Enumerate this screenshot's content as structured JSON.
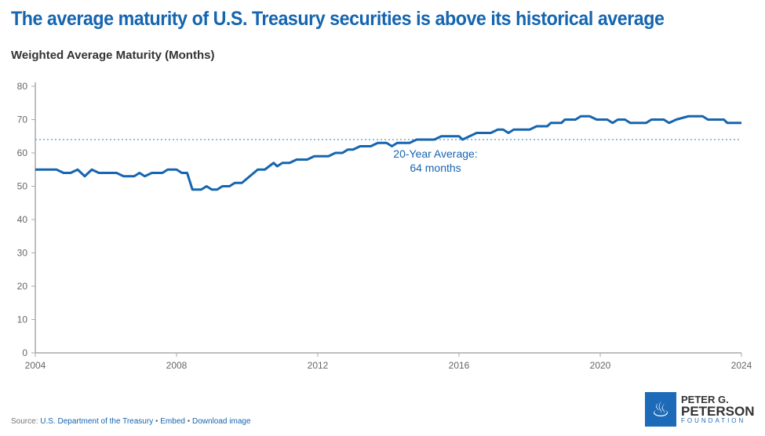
{
  "chart_data": {
    "type": "line",
    "title": "The average maturity of U.S. Treasury securities is above its historical average",
    "ylabel": "Weighted Average Maturity (Months)",
    "xlim": [
      2004,
      2024
    ],
    "ylim": [
      0,
      80
    ],
    "xticks": [
      "2004",
      "2008",
      "2012",
      "2016",
      "2020",
      "2024"
    ],
    "yticks": [
      "0",
      "10",
      "20",
      "30",
      "40",
      "50",
      "60",
      "70",
      "80"
    ],
    "grid": false,
    "line_color": "#1565b0",
    "reference_line": {
      "value": 64,
      "label_line1": "20-Year Average:",
      "label_line2": "64 months",
      "color": "#6fa8dc"
    },
    "points": [
      [
        2004.0,
        55
      ],
      [
        2004.6,
        55
      ],
      [
        2004.8,
        54
      ],
      [
        2005.2,
        54
      ],
      [
        2005.35,
        55
      ],
      [
        2005.6,
        53
      ],
      [
        2005.85,
        55
      ],
      [
        2006.1,
        54
      ],
      [
        2006.6,
        54
      ],
      [
        2006.8,
        53
      ],
      [
        2007.1,
        53
      ],
      [
        2007.25,
        54
      ],
      [
        2007.45,
        53
      ],
      [
        2007.7,
        54
      ],
      [
        2008.0,
        54
      ],
      [
        2008.2,
        55
      ],
      [
        2008.5,
        55
      ],
      [
        2008.7,
        54
      ],
      [
        2008.95,
        55
      ],
      [
        2009.15,
        54
      ],
      [
        2009.45,
        56
      ],
      [
        2010.2,
        56
      ],
      [
        2010.4,
        55
      ],
      [
        2010.6,
        55
      ],
      [
        2010.8,
        56
      ],
      [
        2011.0,
        55
      ],
      [
        2011.3,
        56
      ],
      [
        2011.6,
        56
      ],
      [
        2011.8,
        55
      ],
      [
        2008.0,
        55
      ]
    ],
    "series_points": [
      [
        2004.0,
        55
      ],
      [
        2004.6,
        55
      ],
      [
        2004.8,
        54
      ],
      [
        2005.0,
        54
      ],
      [
        2005.2,
        55
      ],
      [
        2005.4,
        53
      ],
      [
        2005.6,
        55
      ],
      [
        2005.8,
        54
      ],
      [
        2006.3,
        54
      ],
      [
        2006.5,
        53
      ],
      [
        2006.8,
        53
      ],
      [
        2006.95,
        54
      ],
      [
        2007.1,
        53
      ],
      [
        2007.3,
        54
      ],
      [
        2007.6,
        54
      ],
      [
        2007.75,
        55
      ],
      [
        2008.0,
        55
      ],
      [
        2008.15,
        54
      ],
      [
        2008.3,
        54
      ],
      [
        2008.45,
        49
      ],
      [
        2008.7,
        49
      ],
      [
        2008.85,
        50
      ],
      [
        2009.0,
        49
      ],
      [
        2009.15,
        49
      ],
      [
        2009.3,
        50
      ],
      [
        2009.5,
        50
      ],
      [
        2009.65,
        51
      ],
      [
        2009.85,
        51
      ],
      [
        2010.3,
        55
      ],
      [
        2010.5,
        55
      ],
      [
        2010.75,
        57
      ],
      [
        2010.85,
        56
      ],
      [
        2011.0,
        57
      ],
      [
        2011.2,
        57
      ],
      [
        2011.4,
        58
      ],
      [
        2011.7,
        58
      ],
      [
        2011.9,
        59
      ],
      [
        2012.3,
        59
      ],
      [
        2012.5,
        60
      ],
      [
        2012.7,
        60
      ],
      [
        2012.85,
        61
      ],
      [
        2013.0,
        61
      ],
      [
        2013.2,
        62
      ],
      [
        2013.5,
        62
      ],
      [
        2013.7,
        63
      ],
      [
        2013.95,
        63
      ],
      [
        2014.1,
        62
      ],
      [
        2014.25,
        63
      ],
      [
        2014.6,
        63
      ],
      [
        2014.8,
        64
      ],
      [
        2015.3,
        64
      ],
      [
        2015.5,
        65
      ],
      [
        2016.0,
        65
      ],
      [
        2016.1,
        64
      ],
      [
        2016.3,
        65
      ],
      [
        2016.5,
        66
      ],
      [
        2016.9,
        66
      ],
      [
        2017.1,
        67
      ],
      [
        2017.25,
        67
      ],
      [
        2017.4,
        66
      ],
      [
        2017.55,
        67
      ],
      [
        2018.0,
        67
      ],
      [
        2018.2,
        68
      ],
      [
        2018.5,
        68
      ],
      [
        2018.6,
        69
      ],
      [
        2018.9,
        69
      ],
      [
        2019.0,
        70
      ],
      [
        2019.3,
        70
      ],
      [
        2019.45,
        71
      ],
      [
        2019.7,
        71
      ],
      [
        2019.9,
        70
      ],
      [
        2020.2,
        70
      ],
      [
        2020.35,
        69
      ],
      [
        2020.5,
        70
      ],
      [
        2020.7,
        70
      ],
      [
        2020.85,
        69
      ],
      [
        2021.3,
        69
      ],
      [
        2021.45,
        70
      ],
      [
        2021.8,
        70
      ],
      [
        2021.95,
        69
      ],
      [
        2022.15,
        70
      ],
      [
        2022.5,
        71
      ],
      [
        2022.9,
        71
      ],
      [
        2023.05,
        70
      ],
      [
        2023.5,
        70
      ],
      [
        2023.6,
        69
      ],
      [
        2024.0,
        69
      ]
    ],
    "source_label": "Source:",
    "source": "U.S. Department of the Treasury",
    "embed": "Embed",
    "download": "Download image"
  },
  "logo": {
    "line1": "PETER G.",
    "line2": "PETERSON",
    "line3": "FOUNDATION"
  }
}
